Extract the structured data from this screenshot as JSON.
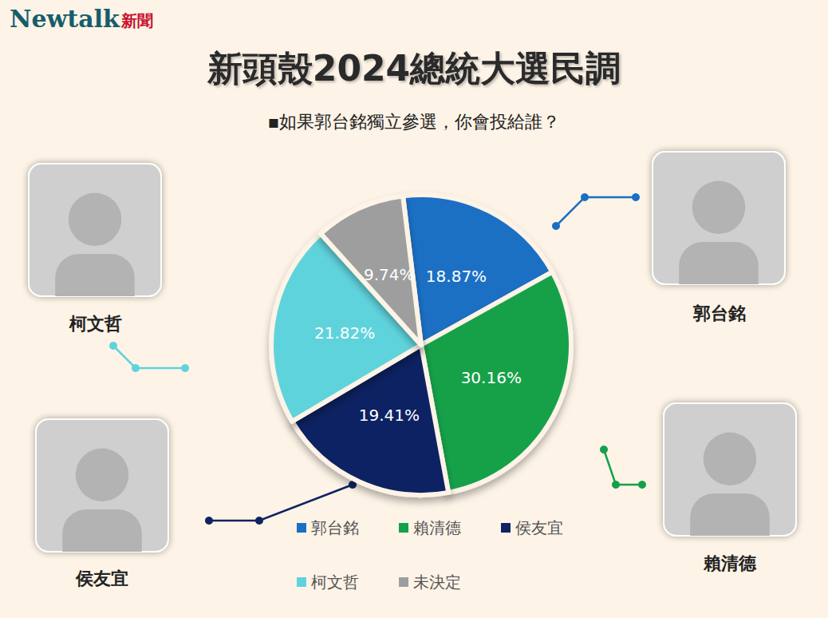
{
  "logo": [
    "Newtalk",
    "新聞"
  ],
  "chart_data": {
    "type": "pie",
    "title": "新頭殼2024總統大選民調",
    "subtitle": "▪如果郭台銘獨立參選，你會投給誰？",
    "categories": [
      "郭台銘",
      "賴清德",
      "侯友宜",
      "柯文哲",
      "未決定"
    ],
    "values": [
      18.87,
      30.16,
      19.41,
      21.82,
      9.74
    ],
    "value_labels": [
      "18.87%",
      "30.16%",
      "19.41%",
      "21.82%",
      "9.74%"
    ],
    "colors": [
      "#1a6fc4",
      "#12a14a",
      "#0f2362",
      "#5fd3dc",
      "#9e9e9e"
    ],
    "data_labels": true,
    "legend": "bottom"
  }
}
